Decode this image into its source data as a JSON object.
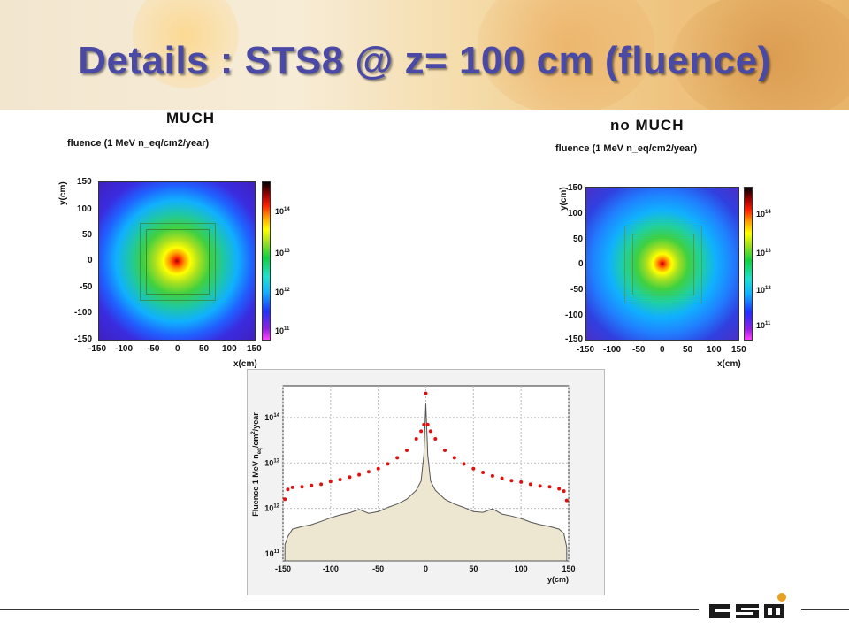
{
  "slide": {
    "title": "Details : STS8 @ z= 100 cm (fluence)"
  },
  "panels": [
    {
      "label": "MUCH",
      "plot_title": "fluence (1 MeV n_eq/cm2/year)",
      "xlabel": "x(cm)",
      "ylabel": "y(cm)",
      "x_ticks": [
        "-150",
        "-100",
        "-50",
        "0",
        "50",
        "100",
        "150"
      ],
      "y_ticks": [
        "150",
        "100",
        "50",
        "0",
        "-50",
        "-100",
        "-150"
      ],
      "colorbar_labels": [
        {
          "base": "10",
          "exp": "14"
        },
        {
          "base": "10",
          "exp": "13"
        },
        {
          "base": "10",
          "exp": "12"
        },
        {
          "base": "10",
          "exp": "11"
        }
      ]
    },
    {
      "label": "no MUCH",
      "plot_title": "fluence (1 MeV n_eq/cm2/year)",
      "xlabel": "x(cm)",
      "ylabel": "y(cm)",
      "x_ticks": [
        "-150",
        "-100",
        "-50",
        "0",
        "50",
        "100",
        "150"
      ],
      "y_ticks": [
        "150",
        "100",
        "50",
        "0",
        "-50",
        "-100",
        "-150"
      ],
      "colorbar_labels": [
        {
          "base": "10",
          "exp": "14"
        },
        {
          "base": "10",
          "exp": "13"
        },
        {
          "base": "10",
          "exp": "12"
        },
        {
          "base": "10",
          "exp": "11"
        }
      ]
    }
  ],
  "chart_data": [
    {
      "type": "heatmap",
      "panel": "MUCH",
      "title": "fluence (1 MeV n_eq/cm2/year)",
      "xlabel": "x(cm)",
      "ylabel": "y(cm)",
      "xlim": [
        -150,
        150
      ],
      "ylim": [
        -150,
        150
      ],
      "colorbar": {
        "scale": "log",
        "range": [
          100000000000.0,
          1000000000000000.0
        ],
        "labels": [
          "10^14",
          "10^13",
          "10^12",
          "10^11"
        ]
      },
      "center_value_approx": 100000000000000.0,
      "edge_value_approx": 1000000000000.0
    },
    {
      "type": "heatmap",
      "panel": "no MUCH",
      "title": "fluence (1 MeV n_eq/cm2/year)",
      "xlabel": "x(cm)",
      "ylabel": "y(cm)",
      "xlim": [
        -150,
        150
      ],
      "ylim": [
        -150,
        150
      ],
      "colorbar": {
        "scale": "log",
        "range": [
          100000000000.0,
          1000000000000000.0
        ],
        "labels": [
          "10^14",
          "10^13",
          "10^12",
          "10^11"
        ]
      },
      "center_value_approx": 100000000000000.0,
      "edge_value_approx": 1000000000000.0
    },
    {
      "type": "line",
      "xlabel": "y(cm)",
      "ylabel": "Fluence 1 MeV n_eq/cm²/year",
      "ylabel_parts": {
        "pre": "Fluence 1 MeV n",
        "sub": "eq",
        "mid": "/cm",
        "sup": "2",
        "post": "/year"
      },
      "xlim": [
        -150,
        150
      ],
      "ylim": [
        70000000000.0,
        500000000000000.0
      ],
      "yscale": "log",
      "grid": true,
      "x_ticks": [
        "-150",
        "-100",
        "-50",
        "0",
        "50",
        "100",
        "150"
      ],
      "y_ticks": [
        {
          "base": "10",
          "exp": "14",
          "value": 100000000000000.0
        },
        {
          "base": "10",
          "exp": "13",
          "value": 10000000000000.0
        },
        {
          "base": "10",
          "exp": "12",
          "value": 1000000000000.0
        },
        {
          "base": "10",
          "exp": "11",
          "value": 100000000000.0
        }
      ],
      "x": [
        -148,
        -145,
        -140,
        -130,
        -120,
        -110,
        -100,
        -90,
        -80,
        -70,
        -60,
        -50,
        -40,
        -30,
        -20,
        -10,
        -5,
        -2,
        0,
        2,
        5,
        10,
        20,
        30,
        40,
        50,
        60,
        70,
        80,
        90,
        100,
        110,
        120,
        130,
        140,
        145,
        148
      ],
      "series": [
        {
          "name": "",
          "color": "#e01010",
          "style": "markers",
          "values": [
            1600000000000.0,
            2600000000000.0,
            2900000000000.0,
            3000000000000.0,
            3200000000000.0,
            3400000000000.0,
            3900000000000.0,
            4300000000000.0,
            4900000000000.0,
            5500000000000.0,
            6400000000000.0,
            7500000000000.0,
            9500000000000.0,
            13000000000000.0,
            19000000000000.0,
            34000000000000.0,
            50000000000000.0,
            70000000000000.0,
            340000000000000.0,
            70000000000000.0,
            50000000000000.0,
            34000000000000.0,
            19000000000000.0,
            13000000000000.0,
            9500000000000.0,
            7500000000000.0,
            6200000000000.0,
            5200000000000.0,
            4600000000000.0,
            4100000000000.0,
            3800000000000.0,
            3400000000000.0,
            3100000000000.0,
            3000000000000.0,
            2700000000000.0,
            2400000000000.0,
            1500000000000.0
          ]
        },
        {
          "name": "",
          "color": "#555555",
          "style": "histogram-filled",
          "values": [
            160000000000.0,
            240000000000.0,
            350000000000.0,
            400000000000.0,
            440000000000.0,
            520000000000.0,
            620000000000.0,
            720000000000.0,
            800000000000.0,
            950000000000.0,
            780000000000.0,
            850000000000.0,
            1050000000000.0,
            1250000000000.0,
            1600000000000.0,
            2500000000000.0,
            4000000000000.0,
            15000000000000.0,
            200000000000000.0,
            15000000000000.0,
            4000000000000.0,
            2500000000000.0,
            1600000000000.0,
            1250000000000.0,
            1050000000000.0,
            850000000000.0,
            820000000000.0,
            980000000000.0,
            750000000000.0,
            680000000000.0,
            600000000000.0,
            500000000000.0,
            440000000000.0,
            400000000000.0,
            350000000000.0,
            280000000000.0,
            140000000000.0
          ]
        }
      ]
    }
  ]
}
